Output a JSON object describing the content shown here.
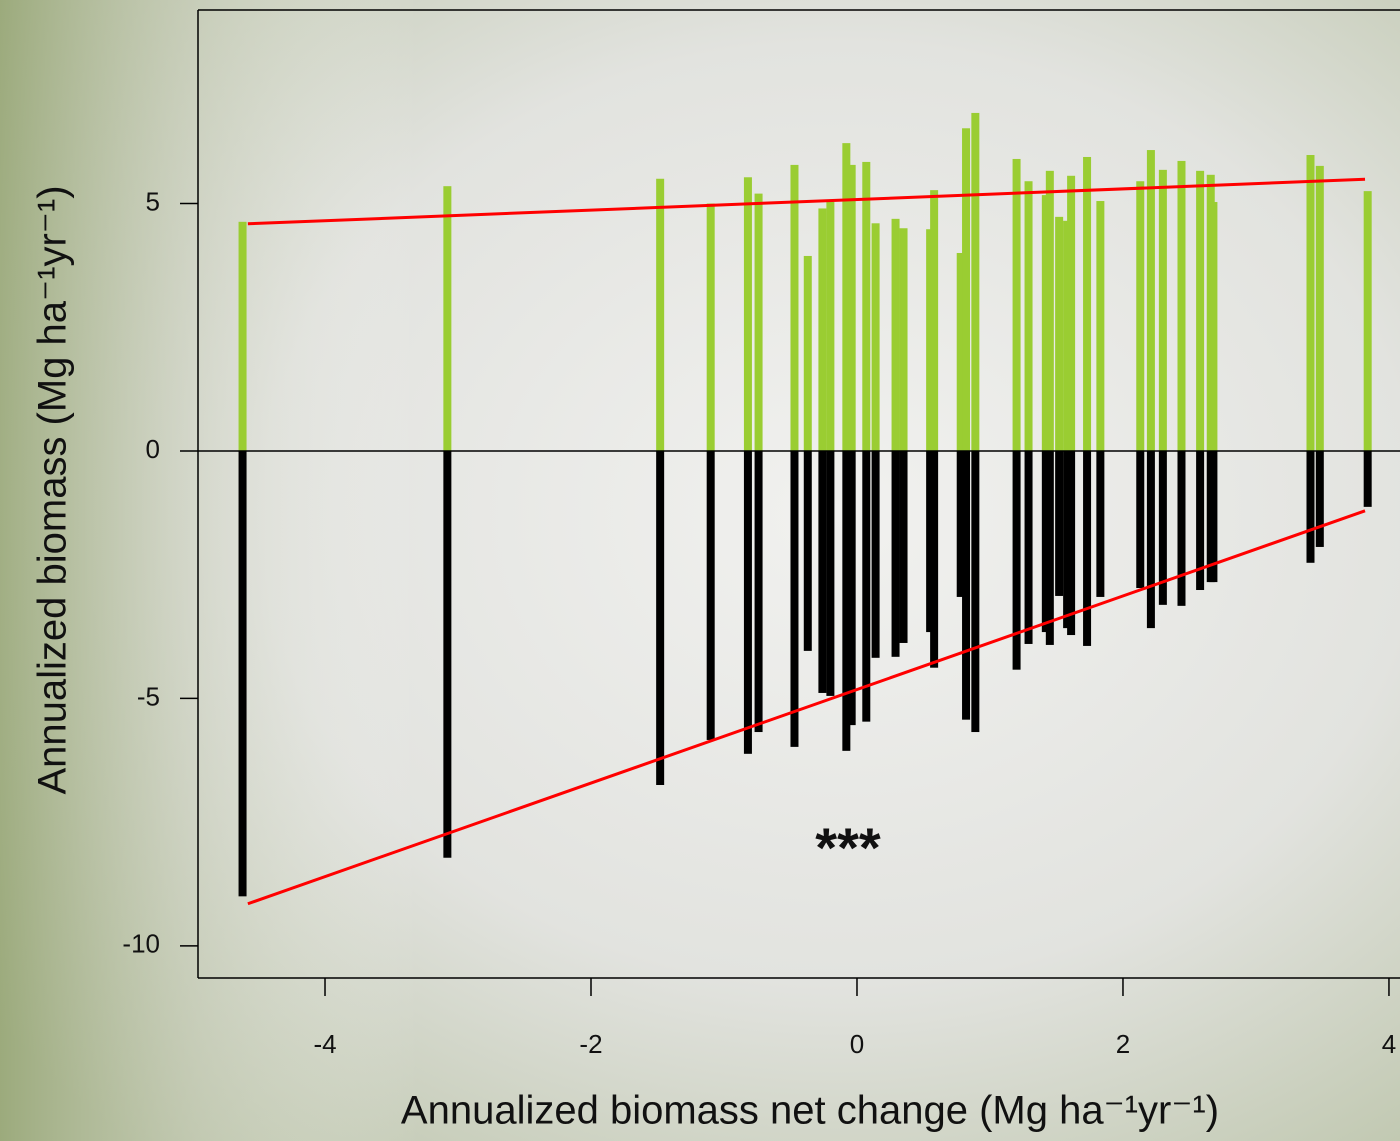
{
  "chart_data": {
    "type": "paired-bar",
    "x_label": "Annualized biomass net change (Mg ha⁻¹yr⁻¹)",
    "y_label": "Annualized biomass (Mg ha⁻¹yr⁻¹)",
    "annotation": "***",
    "x": [
      -4.62,
      -3.08,
      -1.48,
      -1.1,
      -0.82,
      -0.74,
      -0.47,
      -0.37,
      -0.26,
      -0.2,
      -0.08,
      -0.04,
      0.07,
      0.14,
      0.29,
      0.35,
      0.55,
      0.58,
      0.78,
      0.82,
      0.89,
      1.2,
      1.29,
      1.42,
      1.45,
      1.52,
      1.58,
      1.61,
      1.73,
      1.83,
      2.13,
      2.21,
      2.3,
      2.44,
      2.58,
      2.66,
      2.68,
      3.41,
      3.48,
      3.84
    ],
    "series": [
      {
        "color": "#9acd32",
        "values": [
          4.63,
          5.35,
          5.5,
          5.0,
          5.53,
          5.2,
          5.78,
          3.94,
          4.9,
          5.03,
          6.22,
          5.78,
          5.84,
          4.6,
          4.69,
          4.5,
          4.48,
          5.27,
          4.0,
          6.52,
          6.83,
          5.9,
          5.45,
          5.17,
          5.66,
          4.73,
          4.65,
          5.56,
          5.94,
          5.05,
          5.45,
          6.08,
          5.68,
          5.86,
          5.66,
          5.58,
          5.03,
          5.98,
          5.76,
          5.25
        ]
      },
      {
        "color": "#000000",
        "values": [
          -9.0,
          -8.22,
          -6.75,
          -5.84,
          -6.12,
          -5.68,
          -5.98,
          -4.04,
          -4.89,
          -4.95,
          -6.06,
          -5.54,
          -5.47,
          -4.18,
          -4.16,
          -3.88,
          -3.66,
          -4.38,
          -2.95,
          -5.43,
          -5.68,
          -4.42,
          -3.9,
          -3.66,
          -3.92,
          -2.93,
          -3.58,
          -3.72,
          -3.94,
          -2.95,
          -2.77,
          -3.58,
          -3.11,
          -3.13,
          -2.81,
          -2.65,
          -2.65,
          -2.26,
          -1.94,
          -1.13
        ]
      }
    ],
    "fit_lines": [
      {
        "color": "#ff0000",
        "x": [
          -4.58,
          3.82
        ],
        "values": [
          4.59,
          5.49
        ]
      },
      {
        "color": "#ff0000",
        "x": [
          -4.58,
          3.82
        ],
        "values": [
          -9.15,
          -1.21
        ]
      }
    ],
    "xlim": [
      -4.955,
      4.083
    ],
    "ylim": [
      -10.65,
      8.91
    ],
    "xticks": [
      -4,
      -2,
      0,
      2,
      4
    ],
    "yticks": [
      5,
      0,
      -5,
      -10
    ]
  }
}
